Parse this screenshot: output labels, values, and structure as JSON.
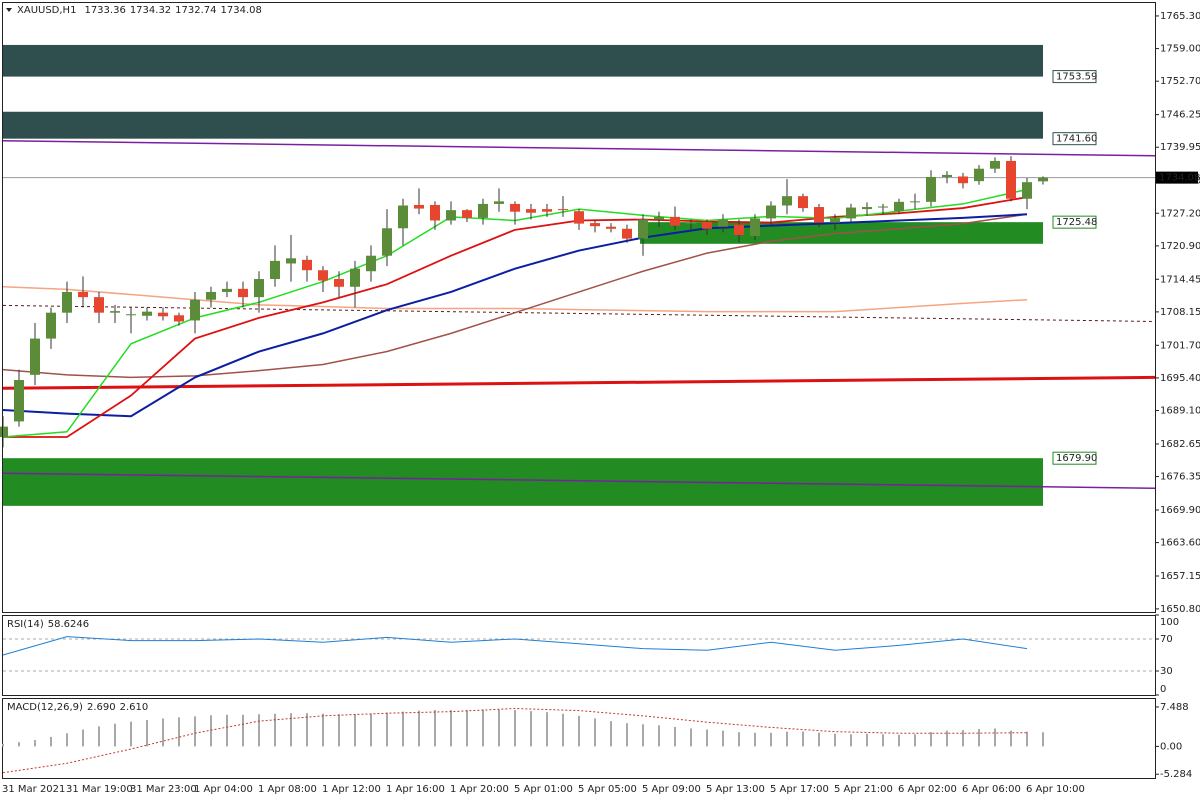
{
  "chart_data": {
    "type": "candlestick",
    "symbol": "XAUUSD,H1",
    "categories": [
      "31 Mar 2021",
      null,
      null,
      null,
      "31 Mar 19:00",
      null,
      null,
      null,
      "31 Mar 23:00",
      null,
      null,
      null,
      "1 Apr 04:00",
      null,
      null,
      null,
      "1 Apr 08:00",
      null,
      null,
      null,
      "1 Apr 12:00",
      null,
      null,
      null,
      "1 Apr 16:00",
      null,
      null,
      null,
      "1 Apr 20:00",
      null,
      null,
      null,
      "5 Apr 01:00",
      null,
      null,
      null,
      "5 Apr 05:00",
      null,
      null,
      null,
      "5 Apr 09:00",
      null,
      null,
      null,
      "5 Apr 13:00",
      null,
      null,
      null,
      "5 Apr 17:00",
      null,
      null,
      null,
      "5 Apr 21:00",
      null,
      null,
      null,
      "6 Apr 02:00",
      null,
      null,
      null,
      "6 Apr 06:00",
      null,
      null,
      null,
      "6 Apr 10:00",
      null
    ],
    "candles": {
      "open": [
        1684,
        1687,
        1696,
        1703,
        1708,
        1712,
        1711,
        1708,
        1707.5,
        1707.4,
        1708,
        1707.5,
        1706.5,
        1710.5,
        1712,
        1712.6,
        1711,
        1714.5,
        1717.5,
        1718.2,
        1716.2,
        1714.5,
        1713,
        1716,
        1719,
        1724.3,
        1728.8,
        1728.8,
        1725.8,
        1727.8,
        1726.3,
        1729,
        1729,
        1728,
        1728,
        1728,
        1727.6,
        1725.3,
        1724.6,
        1724.2,
        1722.3,
        1726,
        1726.5,
        1725.2,
        1725.5,
        1724.6,
        1725,
        1722.8,
        1726.2,
        1728.7,
        1730.5,
        1728.4,
        1725.4,
        1726.2,
        1728,
        1728.3,
        1727.6,
        1729.4,
        1729.4,
        1734.2,
        1734.3,
        1733.4,
        1735.8,
        1737.3,
        1730,
        1733.36
      ],
      "high": [
        1688,
        1697,
        1706,
        1709,
        1714,
        1715,
        1712,
        1709.5,
        1709,
        1709,
        1709,
        1708,
        1712,
        1713,
        1714,
        1714,
        1716,
        1721,
        1723,
        1719,
        1717,
        1716,
        1718,
        1721,
        1728,
        1730,
        1732,
        1729.5,
        1729.5,
        1728,
        1730,
        1732,
        1729.5,
        1729,
        1729,
        1730.5,
        1728,
        1726,
        1725.3,
        1725,
        1727,
        1727.5,
        1728.5,
        1726,
        1726,
        1727,
        1726,
        1727,
        1729.5,
        1733.8,
        1731,
        1729,
        1727,
        1729,
        1729.3,
        1729,
        1730,
        1731,
        1735.5,
        1735.3,
        1735,
        1736.5,
        1738,
        1738.2,
        1734,
        1734.32
      ],
      "low": [
        1682,
        1686,
        1694,
        1701,
        1706,
        1709,
        1706,
        1706,
        1704,
        1706.5,
        1706.5,
        1705.5,
        1704,
        1709,
        1711,
        1709,
        1708,
        1713,
        1714,
        1714,
        1712,
        1711,
        1709,
        1714,
        1717,
        1721,
        1727,
        1724,
        1725,
        1725.5,
        1725,
        1727.5,
        1725,
        1726,
        1726.5,
        1726.5,
        1724,
        1723.5,
        1723.5,
        1721.5,
        1719,
        1724.5,
        1724,
        1724,
        1723,
        1723.5,
        1721.5,
        1722,
        1725,
        1727,
        1727.5,
        1724.5,
        1724,
        1725.5,
        1726.8,
        1727,
        1727,
        1728,
        1728.5,
        1733,
        1732,
        1732.7,
        1735,
        1729.5,
        1728,
        1732.74
      ],
      "close": [
        1686,
        1695,
        1703,
        1708,
        1712,
        1711,
        1708,
        1708.3,
        1707.7,
        1708.2,
        1707.3,
        1706.3,
        1710.5,
        1712,
        1712.6,
        1711,
        1714.5,
        1718,
        1718.5,
        1716.2,
        1714.2,
        1713,
        1716.5,
        1719,
        1724.3,
        1728.7,
        1728.1,
        1725.8,
        1727.8,
        1726.3,
        1729,
        1729.5,
        1727.5,
        1727.3,
        1727.5,
        1727.8,
        1725.2,
        1724.7,
        1724.2,
        1722.3,
        1726,
        1726.5,
        1724.8,
        1725.4,
        1724.2,
        1726,
        1723,
        1726.2,
        1728.7,
        1730.5,
        1728.2,
        1725.4,
        1726.2,
        1728.3,
        1728.4,
        1728.5,
        1729.4,
        1729.5,
        1734.2,
        1734.6,
        1733,
        1735.8,
        1737.3,
        1730,
        1733.2,
        1734.08
      ]
    },
    "up_color": "#5b8c3a",
    "down_color": "#e8452e",
    "ylim": [
      1650.2,
      1767.8
    ],
    "yticks": [
      {
        "value": 1765.3,
        "label": "1765.30"
      },
      {
        "value": 1759,
        "label": "1759.00"
      },
      {
        "value": 1752.7,
        "label": "1752.70"
      },
      1746.25,
      {
        "value": 1739.95,
        "label": "1739.95"
      },
      {
        "value": 1733.5,
        "label": "1733.50"
      },
      {
        "value": 1727.2,
        "label": "1727.20"
      },
      {
        "value": 1720.9,
        "label": "1720.90"
      },
      1714.45,
      1708.15,
      {
        "value": 1701.7,
        "label": "1701.70"
      },
      {
        "value": 1695.4,
        "label": "1695.40"
      },
      {
        "value": 1689.1,
        "label": "1689.10"
      },
      1682.65,
      1676.35,
      {
        "value": 1669.9,
        "label": "1669.90"
      },
      {
        "value": 1663.6,
        "label": "1663.60"
      },
      1657.15,
      {
        "value": 1650.8,
        "label": "1650.80"
      }
    ],
    "zones": [
      {
        "color": "#2f4f4f",
        "start": "31 Mar 2021",
        "edge": 1753.59,
        "far": 1759.7
      },
      {
        "color": "#2f4f4f",
        "start": "31 Mar 2021",
        "edge": {
          "value": 1741.6,
          "label": "1741.60"
        },
        "far": 1746.8
      },
      {
        "color": "#228b22",
        "start": "5 Apr 09:00",
        "edge": 1725.48,
        "far": 1721.3
      },
      {
        "color": "#228b22",
        "start": "31 Mar 2021",
        "edge": {
          "value": 1679.9,
          "label": "1679.90"
        },
        "far": 1670.7
      }
    ],
    "levels": [
      {
        "color": "#7b1fa2",
        "width": 1.5,
        "values": [
          1741.2,
          1738.3
        ]
      },
      {
        "color": "#7b1fa2",
        "width": 1.5,
        "values": [
          1677,
          1674.1
        ]
      },
      {
        "color": "#5a1a1a",
        "width": 1,
        "dash": true,
        "values": [
          1709.4,
          1706.3
        ]
      },
      {
        "color": "#dd1111",
        "width": 3,
        "values": [
          1693.4,
          1695.5
        ]
      }
    ],
    "overlays": [
      {
        "color": "#f4a582",
        "width": 1.5,
        "values": [
          1713,
          1712.5,
          1711.5,
          1710.5,
          1709.5,
          1709.2,
          1708.8,
          1708.8,
          1708.8,
          1708.6,
          1708.4,
          1708.2,
          1708.2,
          1708.2,
          1709,
          1709.8,
          1710.5
        ]
      },
      {
        "color": "#a0524a",
        "width": 1.5,
        "values": [
          1697,
          1696,
          1695.5,
          1695.8,
          1696.8,
          1698,
          1700.5,
          1704,
          1708,
          1712,
          1716,
          1719.5,
          1721.8,
          1723.3,
          1724.2,
          1725.2,
          1727
        ]
      },
      {
        "color": "#0b1fa0",
        "width": 2,
        "values": [
          1689.2,
          1688.5,
          1688,
          1695.5,
          1700.5,
          1704,
          1708.5,
          1712,
          1716.5,
          1720,
          1722.5,
          1724.3,
          1724.8,
          1725.3,
          1725.8,
          1726.3,
          1727
        ]
      },
      {
        "color": "#dd1111",
        "width": 1.8,
        "values": [
          1684,
          1684,
          1692,
          1703,
          1707,
          1710,
          1713.5,
          1719,
          1724,
          1725.8,
          1726,
          1725.6,
          1725.4,
          1726.5,
          1727.2,
          1728.2,
          1730.3
        ]
      },
      {
        "color": "#22dd22",
        "width": 1.5,
        "values": [
          1684,
          1685,
          1702,
          1707,
          1710,
          1714,
          1719,
          1726.5,
          1725.8,
          1728,
          1726.8,
          1725.8,
          1726.6,
          1726.2,
          1727.6,
          1729,
          1731.8
        ]
      }
    ],
    "rsi": {
      "title": "RSI(14)",
      "value": 58.6246,
      "color": "#1e7fd4",
      "values": [
        50,
        73,
        68,
        68,
        70,
        66,
        72,
        66,
        70,
        64,
        58,
        56,
        66,
        56,
        62,
        70,
        58
      ],
      "ylim": [
        0,
        100
      ],
      "yticks": [
        100,
        70,
        30,
        0
      ],
      "levels": [
        70,
        30
      ]
    },
    "macd": {
      "title": "MACD(12,26,9)",
      "main": {
        "value": 2.69,
        "label": "2.690"
      },
      "signal": {
        "value": 2.61,
        "label": "2.610"
      },
      "histogram": [
        0.5,
        0.8,
        1.2,
        1.8,
        2.5,
        3.2,
        3.8,
        4.3,
        4.7,
        5.0,
        5.3,
        5.5,
        5.7,
        5.9,
        6.0,
        6.0,
        6.1,
        6.2,
        6.3,
        6.3,
        6.2,
        6.1,
        6.1,
        6.2,
        6.4,
        6.6,
        6.8,
        6.9,
        6.9,
        6.9,
        7.0,
        7.0,
        6.9,
        6.7,
        6.5,
        6.2,
        5.8,
        5.3,
        4.8,
        4.4,
        4.2,
        4.0,
        3.7,
        3.4,
        3.2,
        3.0,
        2.7,
        2.6,
        2.6,
        2.8,
        2.8,
        2.6,
        2.4,
        2.3,
        2.4,
        2.3,
        2.2,
        2.3,
        2.7,
        3.0,
        3.1,
        3.3,
        3.4,
        3.0,
        2.8,
        2.69
      ],
      "histogram_color": "#a8a8a8",
      "signal_values": [
        -5.0,
        -3.2,
        -0.5,
        2.5,
        4.8,
        5.8,
        6.3,
        6.6,
        7.2,
        6.8,
        5.8,
        4.6,
        3.6,
        2.8,
        2.5,
        2.5,
        2.6
      ],
      "signal_color": "#c0392b",
      "ylim": [
        -6.0,
        9.0
      ],
      "yticks": [
        7.488,
        {
          "value": 0,
          "label": "0.00"
        },
        -5.284
      ]
    }
  }
}
